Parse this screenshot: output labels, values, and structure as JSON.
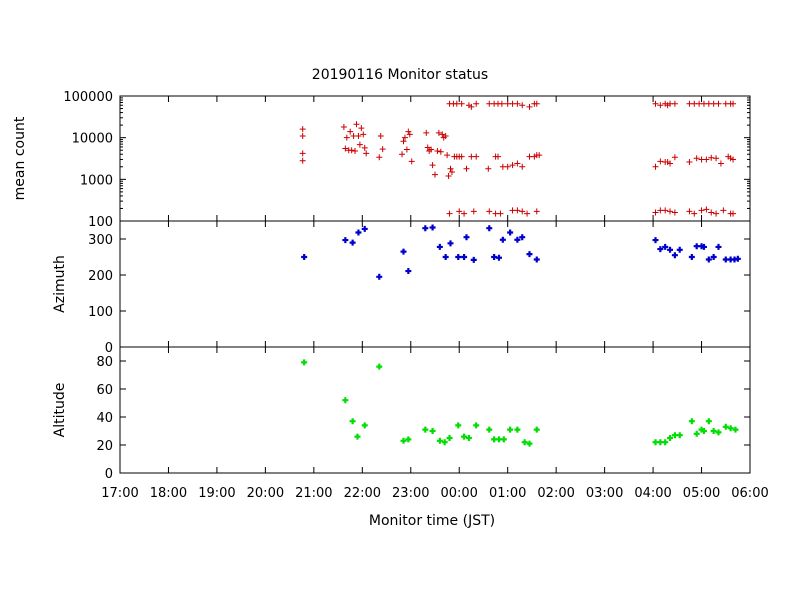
{
  "chart_data": {
    "type": "scatter",
    "title": "20190116 Monitor status",
    "xlabel": "Monitor time (JST)",
    "x_ticks": [
      "17:00",
      "18:00",
      "19:00",
      "20:00",
      "21:00",
      "22:00",
      "23:00",
      "00:00",
      "01:00",
      "02:00",
      "03:00",
      "04:00",
      "05:00",
      "06:00"
    ],
    "x_range_hours": [
      17,
      30
    ],
    "panels": [
      {
        "id": "mean-count",
        "ylabel": "mean count",
        "scale": "log",
        "ylim": [
          100,
          100000
        ],
        "y_ticks": [
          "100",
          "1000",
          "10000",
          "100000"
        ],
        "y_tick_values": [
          100,
          1000,
          10000,
          100000
        ],
        "color": "#cc0000",
        "marker": "plus-small",
        "series": [
          {
            "x": [
              20.77,
              20.77,
              20.77,
              20.77,
              21.62,
              21.65,
              21.68,
              21.72,
              21.75,
              21.78,
              21.82,
              21.85,
              21.88,
              21.92,
              21.95,
              21.98,
              22.02,
              22.05,
              22.08,
              22.35,
              22.38,
              22.42,
              22.82,
              22.85,
              22.88,
              22.92,
              22.95,
              22.98,
              23.02,
              23.32,
              23.35,
              23.38,
              23.42,
              23.55,
              23.58,
              23.62,
              23.65,
              23.68,
              23.72,
              23.75,
              23.78,
              23.82,
              23.85
            ],
            "y": [
              16000,
              11000,
              4200,
              2800,
              18000,
              5500,
              10000,
              5000,
              14000,
              5000,
              11000,
              4800,
              21000,
              11000,
              6800,
              17000,
              12000,
              5700,
              4200,
              3400,
              11000,
              5300,
              4000,
              8200,
              10000,
              5200,
              14000,
              12000,
              2700,
              13000,
              5800,
              4800,
              5200,
              4800,
              13000,
              4600,
              12000,
              10000,
              11000,
              3800,
              1200,
              1800,
              1500
            ]
          },
          {
            "x": [
              23.45,
              23.5,
              23.9,
              23.95,
              24.0,
              24.05,
              24.15,
              24.25,
              24.35,
              24.6,
              24.75,
              24.8,
              24.9,
              25.0,
              25.1,
              25.2,
              25.3,
              25.45,
              25.55,
              25.6,
              25.65
            ],
            "y": [
              2200,
              1300,
              3500,
              3500,
              3500,
              3500,
              1800,
              3500,
              3500,
              1800,
              3500,
              3500,
              2000,
              2000,
              2200,
              2400,
              2000,
              3500,
              3500,
              3800,
              3800
            ]
          },
          {
            "x": [
              23.8,
              23.88,
              23.95,
              24.05,
              24.2,
              24.25,
              24.35,
              24.62,
              24.72,
              24.8,
              24.88,
              25.0,
              25.1,
              25.2,
              25.3,
              25.45,
              25.55,
              25.6
            ],
            "y": [
              65000,
              65000,
              65000,
              65000,
              60000,
              55000,
              65000,
              65000,
              65000,
              65000,
              65000,
              65000,
              65000,
              65000,
              60000,
              55000,
              65000,
              65000
            ]
          },
          {
            "x": [
              23.8,
              24.0,
              24.1,
              24.3,
              24.62,
              24.75,
              24.85,
              25.1,
              25.2,
              25.3,
              25.4,
              25.6
            ],
            "y": [
              150,
              170,
              150,
              170,
              170,
              150,
              150,
              180,
              180,
              170,
              150,
              170
            ]
          },
          {
            "x": [
              28.05,
              28.15,
              28.25,
              28.3,
              28.35,
              28.45,
              28.75,
              28.85,
              28.95,
              29.05,
              29.15,
              29.25,
              29.35,
              29.5,
              29.6,
              29.65
            ],
            "y": [
              65000,
              60000,
              65000,
              60000,
              65000,
              65000,
              65000,
              65000,
              65000,
              65000,
              65000,
              65000,
              65000,
              65000,
              65000,
              65000
            ]
          },
          {
            "x": [
              28.05,
              28.15,
              28.25,
              28.3,
              28.35,
              28.45,
              28.75,
              28.9,
              29.0,
              29.1,
              29.2,
              29.3,
              29.4,
              29.55,
              29.6,
              29.65
            ],
            "y": [
              2000,
              2700,
              2600,
              2600,
              2400,
              3400,
              2600,
              3200,
              3000,
              3000,
              3300,
              3200,
              2400,
              3500,
              3200,
              3000
            ]
          },
          {
            "x": [
              28.05,
              28.15,
              28.25,
              28.35,
              28.45,
              28.75,
              28.85,
              29.0,
              29.1,
              29.2,
              29.3,
              29.45,
              29.6,
              29.65
            ],
            "y": [
              160,
              180,
              180,
              170,
              160,
              170,
              150,
              180,
              190,
              160,
              150,
              180,
              150,
              150
            ]
          }
        ]
      },
      {
        "id": "azimuth",
        "ylabel": "Azimuth",
        "scale": "linear",
        "ylim": [
          0,
          350
        ],
        "y_ticks": [
          "0",
          "100",
          "200",
          "300"
        ],
        "y_tick_values": [
          0,
          100,
          200,
          300
        ],
        "color": "#0000cc",
        "marker": "plus-bold",
        "series": [
          {
            "x": [
              20.8,
              21.65,
              21.8,
              21.92,
              22.05,
              22.35,
              22.85,
              22.95,
              23.3,
              23.45,
              23.6,
              23.72,
              23.82,
              23.98,
              24.1,
              24.15,
              24.3,
              24.62,
              24.72,
              24.82,
              24.9,
              25.05,
              25.2,
              25.3,
              25.45,
              25.6,
              28.05,
              28.15,
              28.25,
              28.35,
              28.45,
              28.55,
              28.8,
              28.9,
              29.0,
              29.05,
              29.15,
              29.25,
              29.35,
              29.5,
              29.6,
              29.68,
              29.75
            ],
            "y": [
              250,
              297,
              290,
              318,
              328,
              195,
              265,
              211,
              330,
              332,
              278,
              250,
              288,
              250,
              250,
              305,
              242,
              330,
              250,
              248,
              298,
              318,
              298,
              305,
              258,
              243,
              297,
              272,
              278,
              270,
              255,
              270,
              250,
              280,
              280,
              278,
              243,
              250,
              278,
              243,
              243,
              243,
              245
            ]
          }
        ]
      },
      {
        "id": "altitude",
        "ylabel": "Altitude",
        "scale": "linear",
        "ylim": [
          0,
          90
        ],
        "y_ticks": [
          "0",
          "20",
          "40",
          "60",
          "80"
        ],
        "y_tick_values": [
          0,
          20,
          40,
          60,
          80
        ],
        "color": "#00dd00",
        "marker": "plus-bold",
        "series": [
          {
            "x": [
              20.8,
              21.65,
              21.8,
              21.9,
              22.05,
              22.35,
              22.85,
              22.95,
              23.3,
              23.45,
              23.6,
              23.7,
              23.8,
              23.98,
              24.1,
              24.2,
              24.35,
              24.62,
              24.72,
              24.82,
              24.92,
              25.05,
              25.2,
              25.35,
              25.45,
              25.6,
              28.05,
              28.15,
              28.25,
              28.35,
              28.45,
              28.55,
              28.8,
              28.9,
              29.0,
              29.05,
              29.15,
              29.25,
              29.35,
              29.5,
              29.6,
              29.7
            ],
            "y": [
              79,
              52,
              37,
              26,
              34,
              76,
              23,
              24,
              31,
              30,
              23,
              22,
              25,
              34,
              26,
              25,
              34,
              31,
              24,
              24,
              24,
              31,
              31,
              22,
              21,
              31,
              22,
              22,
              22,
              25,
              27,
              27,
              37,
              28,
              31,
              30,
              37,
              30,
              29,
              33,
              32,
              31
            ]
          }
        ]
      }
    ]
  }
}
